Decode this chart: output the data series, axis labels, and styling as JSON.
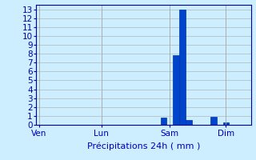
{
  "title": "",
  "xlabel": "Précipitations 24h ( mm )",
  "background_color": "#cceeff",
  "grid_color": "#aaaaaa",
  "bar_color": "#0044cc",
  "bar_edge_color": "#0033aa",
  "x_tick_labels": [
    "Ven",
    "Lun",
    "Sam",
    "Dim"
  ],
  "x_tick_positions": [
    0,
    10,
    21,
    30
  ],
  "ylim": [
    0,
    13.5
  ],
  "yticks": [
    0,
    1,
    2,
    3,
    4,
    5,
    6,
    7,
    8,
    9,
    10,
    11,
    12,
    13
  ],
  "xlim": [
    -0.5,
    34
  ],
  "bar_positions": [
    20,
    22,
    23,
    24,
    28,
    30
  ],
  "bar_heights": [
    0.8,
    7.8,
    13.0,
    0.5,
    0.9,
    0.3
  ],
  "bar_width": 1.0,
  "axis_color": "#0000aa",
  "tick_color": "#0000aa",
  "label_color": "#0000bb",
  "xlabel_fontsize": 8,
  "tick_fontsize": 7.5
}
